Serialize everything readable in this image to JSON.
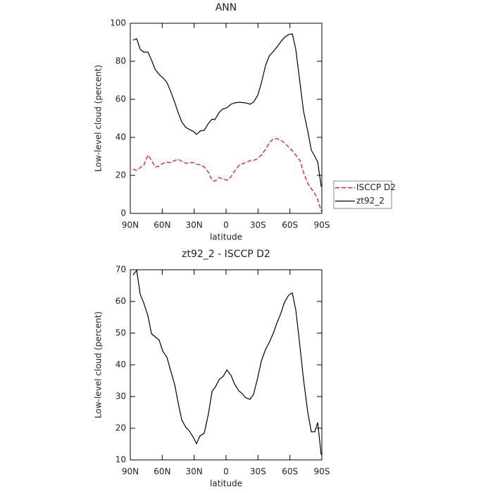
{
  "chart_data": [
    {
      "type": "line",
      "title": "ANN",
      "xlabel": "latitude",
      "ylabel": "Low-level cloud (percent)",
      "x": [
        87.4,
        84,
        80.7,
        77.4,
        73.5,
        70.1,
        66.8,
        62.9,
        59.6,
        55.6,
        52.3,
        48.3,
        45,
        41.7,
        37.7,
        34.4,
        30.4,
        27.8,
        24.5,
        20.5,
        16.5,
        13.2,
        10.6,
        6.6,
        3.3,
        -0.7,
        -4.6,
        -7.9,
        -12.6,
        -18.5,
        -22.5,
        -25.8,
        -29.8,
        -33.1,
        -37.1,
        -40.4,
        -44.4,
        -47.7,
        -51.6,
        -54.9,
        -58.9,
        -62.2,
        -65.5,
        -69.5,
        -72.8,
        -76.8,
        -80.1,
        -83.4,
        -86.1,
        -89.4
      ],
      "series": [
        {
          "name": "ISCCP D2",
          "color": "#ff0000",
          "dashed": true,
          "values": [
            23.3,
            22.6,
            24.1,
            25.2,
            30.7,
            28.1,
            24.4,
            24.8,
            26.3,
            27,
            26.7,
            27.8,
            28.5,
            27.4,
            26.3,
            26.7,
            26.7,
            25.9,
            25.6,
            24.4,
            21.5,
            17.4,
            17,
            18.9,
            18.1,
            17.4,
            19.3,
            22.2,
            25.6,
            26.7,
            27.8,
            27.8,
            28.9,
            30.7,
            33.7,
            37,
            39.3,
            39.3,
            38.5,
            37,
            34.8,
            33,
            30.7,
            27.8,
            21.5,
            15.6,
            13,
            10.4,
            7.4,
            1.1
          ]
        },
        {
          "name": "zt92_2",
          "color": "#000000",
          "dashed": false,
          "values": [
            91.1,
            91.9,
            86.3,
            84.8,
            84.8,
            80.7,
            75.9,
            73,
            71.5,
            68.9,
            64.4,
            58.5,
            53,
            48.1,
            45.2,
            44.1,
            43,
            41.5,
            43.3,
            43.7,
            47.4,
            49.6,
            49.3,
            53,
            54.8,
            55.6,
            57.4,
            58.1,
            58.5,
            58.1,
            57.4,
            58.5,
            62.2,
            68.5,
            77.8,
            82.6,
            85.2,
            87.4,
            90.4,
            92.6,
            94.1,
            94.4,
            86.3,
            68.5,
            53.7,
            43,
            33.3,
            30,
            27,
            14.1
          ]
        }
      ],
      "xlim": [
        90,
        -90
      ],
      "xticks": [
        {
          "value": 90,
          "label": "90N"
        },
        {
          "value": 60,
          "label": "60N"
        },
        {
          "value": 30,
          "label": "30N"
        },
        0,
        {
          "value": -30,
          "label": "30S"
        },
        {
          "value": -60,
          "label": "60S"
        },
        {
          "value": -90,
          "label": "90S"
        }
      ],
      "ylim": [
        0,
        100
      ],
      "yticks": [
        0,
        20,
        40,
        60,
        80,
        100
      ],
      "legend": "right"
    },
    {
      "type": "line",
      "title": "zt92_2 - ISCCP D2",
      "xlabel": "latitude",
      "ylabel": "Low-level cloud (percent)",
      "x": [
        87.4,
        84,
        80.7,
        77.4,
        73.5,
        70.1,
        66.8,
        62.9,
        59.6,
        55.6,
        52.3,
        48.3,
        45,
        41.7,
        37.7,
        34.4,
        30.4,
        27.8,
        24.5,
        20.5,
        16.5,
        13.2,
        9.9,
        6.6,
        2.6,
        -0.7,
        -4.6,
        -7.9,
        -11.9,
        -15.2,
        -18.5,
        -22.5,
        -25.8,
        -29.8,
        -33.1,
        -37.1,
        -40.4,
        -44.4,
        -47.7,
        -51.6,
        -54.9,
        -58.9,
        -62.2,
        -65.5,
        -69.5,
        -72.8,
        -76.8,
        -80.1,
        -83.4,
        -86.1,
        -89.4
      ],
      "values": [
        68.4,
        69.8,
        62.2,
        59.6,
        55.6,
        49.8,
        48.9,
        47.8,
        44.4,
        42.4,
        38.4,
        33.8,
        28,
        22.7,
        20.2,
        19.1,
        16.9,
        15.1,
        17.6,
        18.4,
        24.7,
        31.6,
        33.1,
        35.3,
        36.4,
        38.4,
        36.7,
        34,
        31.8,
        30.9,
        29.6,
        29.1,
        30.7,
        36,
        41.1,
        44.9,
        46.9,
        50,
        53.1,
        56.4,
        59.8,
        62,
        62.7,
        57.3,
        45.6,
        35.3,
        24.9,
        18.9,
        18.9,
        21.8,
        11.6
      ],
      "color": "#000000",
      "xlim": [
        90,
        -90
      ],
      "xticks": [
        {
          "value": 90,
          "label": "90N"
        },
        {
          "value": 60,
          "label": "60N"
        },
        {
          "value": 30,
          "label": "30N"
        },
        0,
        {
          "value": -30,
          "label": "30S"
        },
        {
          "value": -60,
          "label": "60S"
        },
        {
          "value": -90,
          "label": "90S"
        }
      ],
      "ylim": [
        10,
        70
      ],
      "yticks": [
        10,
        20,
        30,
        40,
        50,
        60,
        70
      ]
    }
  ]
}
